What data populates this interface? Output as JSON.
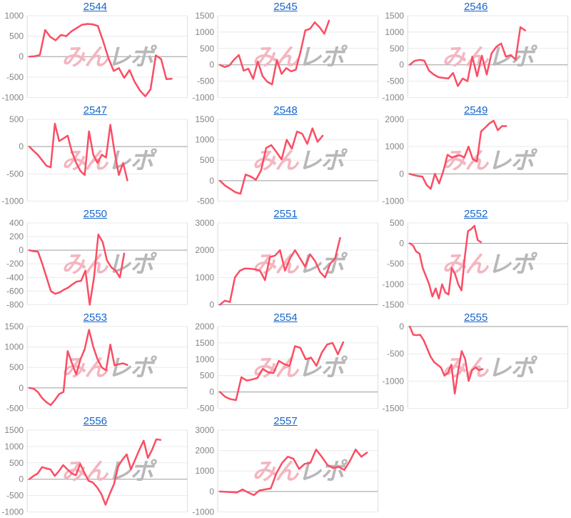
{
  "page": {
    "background": "#ffffff",
    "watermark": {
      "pink_text": "みん",
      "gray_text": "レポ"
    },
    "style": {
      "line_color": "#fb4d64",
      "link_color": "#1766cb",
      "tick_label_color": "#848484",
      "grid_color": "#eaeaea",
      "zero_line_color": "#9d9d9d",
      "axis_border_color": "#dcdcdc",
      "watermark_pink": "#f3b6c0",
      "watermark_gray": "#b8b8b8"
    }
  },
  "chart_data": [
    {
      "type": "line",
      "title": "2544",
      "ylim": [
        -1000,
        1000
      ],
      "yticks": [
        1000,
        500,
        0,
        -500,
        -1000
      ],
      "span": 0.9,
      "values": [
        0,
        10,
        40,
        650,
        480,
        400,
        530,
        500,
        620,
        700,
        780,
        800,
        790,
        750,
        380,
        -30,
        -350,
        -280,
        -520,
        -330,
        -620,
        -830,
        -970,
        -800,
        30,
        -60,
        -550,
        -540
      ]
    },
    {
      "type": "line",
      "title": "2545",
      "ylim": [
        -1000,
        1500
      ],
      "yticks": [
        1500,
        1000,
        500,
        0,
        -500,
        -1000
      ],
      "span": 0.69,
      "values": [
        0,
        -70,
        -20,
        160,
        300,
        -180,
        -120,
        -430,
        100,
        -350,
        -520,
        -600,
        150,
        -280,
        -100,
        -200,
        -150,
        400,
        1050,
        1100,
        1300,
        1150,
        950,
        1350
      ]
    },
    {
      "type": "line",
      "title": "2546",
      "ylim": [
        -1000,
        1500
      ],
      "yticks": [
        1500,
        1000,
        500,
        0,
        -500,
        -1000
      ],
      "span": 0.73,
      "values": [
        0,
        120,
        150,
        130,
        -180,
        -300,
        -380,
        -400,
        -420,
        -250,
        -650,
        -420,
        -500,
        250,
        -350,
        280,
        -300,
        350,
        550,
        650,
        250,
        300,
        160,
        1150,
        1050
      ]
    },
    {
      "type": "line",
      "title": "2547",
      "ylim": [
        -1000,
        500
      ],
      "yticks": [
        500,
        0,
        -500,
        -1000
      ],
      "span": 0.62,
      "values": [
        0,
        -80,
        -150,
        -250,
        -350,
        -380,
        420,
        100,
        150,
        200,
        -100,
        -300,
        -450,
        -520,
        280,
        -150,
        -300,
        -150,
        -200,
        400,
        -100,
        -520,
        -300,
        -620
      ]
    },
    {
      "type": "line",
      "title": "2548",
      "ylim": [
        -500,
        1500
      ],
      "yticks": [
        1500,
        1000,
        500,
        0,
        -500
      ],
      "span": 0.65,
      "values": [
        0,
        -120,
        -200,
        -280,
        -320,
        150,
        100,
        20,
        250,
        800,
        870,
        700,
        520,
        1000,
        780,
        1200,
        1150,
        900,
        1280,
        950,
        1100
      ]
    },
    {
      "type": "line",
      "title": "2549",
      "ylim": [
        -1000,
        2000
      ],
      "yticks": [
        2000,
        1000,
        0,
        -1000
      ],
      "span": 0.61,
      "values": [
        0,
        -50,
        -80,
        -100,
        -400,
        -550,
        0,
        -350,
        100,
        700,
        600,
        650,
        680,
        600,
        1000,
        550,
        450,
        1550,
        1700,
        1850,
        1950,
        1600,
        1750,
        1750
      ]
    },
    {
      "type": "line",
      "title": "2550",
      "ylim": [
        -800,
        400
      ],
      "yticks": [
        400,
        200,
        0,
        -200,
        -400,
        -600,
        -800
      ],
      "span": 0.6,
      "values": [
        0,
        -15,
        -20,
        -200,
        -400,
        -600,
        -640,
        -620,
        -580,
        -550,
        -500,
        -460,
        -450,
        -300,
        -800,
        -400,
        230,
        120,
        -150,
        -250,
        -300,
        -400,
        -50
      ]
    },
    {
      "type": "line",
      "title": "2551",
      "ylim": [
        0,
        3000
      ],
      "yticks": [
        3000,
        2000,
        1000,
        0
      ],
      "span": 0.76,
      "values": [
        0,
        150,
        100,
        1000,
        1250,
        1330,
        1320,
        1300,
        1250,
        900,
        1750,
        1800,
        2000,
        1250,
        1700,
        2000,
        1700,
        1400,
        1850,
        1600,
        1200,
        1000,
        1500,
        1700,
        2450
      ]
    },
    {
      "type": "line",
      "title": "2552",
      "ylim": [
        -1500,
        500
      ],
      "yticks": [
        500,
        0,
        -500,
        -1000,
        -1500
      ],
      "span": 0.45,
      "values": [
        0,
        -50,
        -200,
        -250,
        -600,
        -800,
        -1000,
        -1300,
        -1100,
        -1350,
        -1000,
        -1200,
        -1250,
        -600,
        -750,
        -1000,
        -1150,
        -350,
        300,
        350,
        430,
        80,
        30
      ]
    },
    {
      "type": "line",
      "title": "2553",
      "ylim": [
        -500,
        1500
      ],
      "yticks": [
        1500,
        1000,
        500,
        0,
        -500
      ],
      "span": 0.62,
      "values": [
        0,
        -20,
        -100,
        -250,
        -350,
        -420,
        -300,
        -150,
        -100,
        900,
        600,
        330,
        700,
        950,
        1420,
        1000,
        700,
        500,
        430,
        1060,
        550,
        580,
        600,
        560
      ]
    },
    {
      "type": "line",
      "title": "2554",
      "ylim": [
        -500,
        2000
      ],
      "yticks": [
        2000,
        1500,
        1000,
        500,
        0,
        -500
      ],
      "span": 0.78,
      "values": [
        0,
        -150,
        -220,
        -250,
        450,
        350,
        380,
        430,
        700,
        600,
        580,
        950,
        850,
        800,
        1400,
        1350,
        1000,
        1050,
        800,
        1200,
        1450,
        1500,
        1150,
        1520
      ]
    },
    {
      "type": "line",
      "title": "2555",
      "ylim": [
        -1500,
        0
      ],
      "yticks": [
        0,
        -500,
        -1000,
        -1500
      ],
      "span": 0.46,
      "values": [
        0,
        -150,
        -160,
        -150,
        -250,
        -400,
        -550,
        -650,
        -700,
        -750,
        -900,
        -850,
        -700,
        -1230,
        -800,
        -450,
        -600,
        -1000,
        -800,
        -750,
        -800,
        -780
      ]
    },
    {
      "type": "line",
      "title": "2556",
      "ylim": [
        -1000,
        1500
      ],
      "yticks": [
        1500,
        1000,
        500,
        0,
        -500,
        -1000
      ],
      "span": 0.83,
      "values": [
        0,
        100,
        180,
        370,
        330,
        300,
        100,
        250,
        430,
        300,
        180,
        120,
        470,
        200,
        -50,
        -100,
        -250,
        -450,
        -780,
        -450,
        -150,
        400,
        600,
        760,
        300,
        600,
        900,
        1180,
        650,
        900,
        1220,
        1200
      ]
    },
    {
      "type": "line",
      "title": "2557",
      "ylim": [
        -1000,
        3000
      ],
      "yticks": [
        3000,
        2000,
        1000,
        0,
        -1000
      ],
      "span": 0.93,
      "values": [
        0,
        -20,
        -30,
        -50,
        100,
        -50,
        -180,
        50,
        100,
        150,
        900,
        1400,
        1700,
        1600,
        1100,
        1350,
        1400,
        2050,
        1700,
        1300,
        1150,
        1200,
        1050,
        1500,
        2050,
        1700,
        1900
      ]
    }
  ]
}
